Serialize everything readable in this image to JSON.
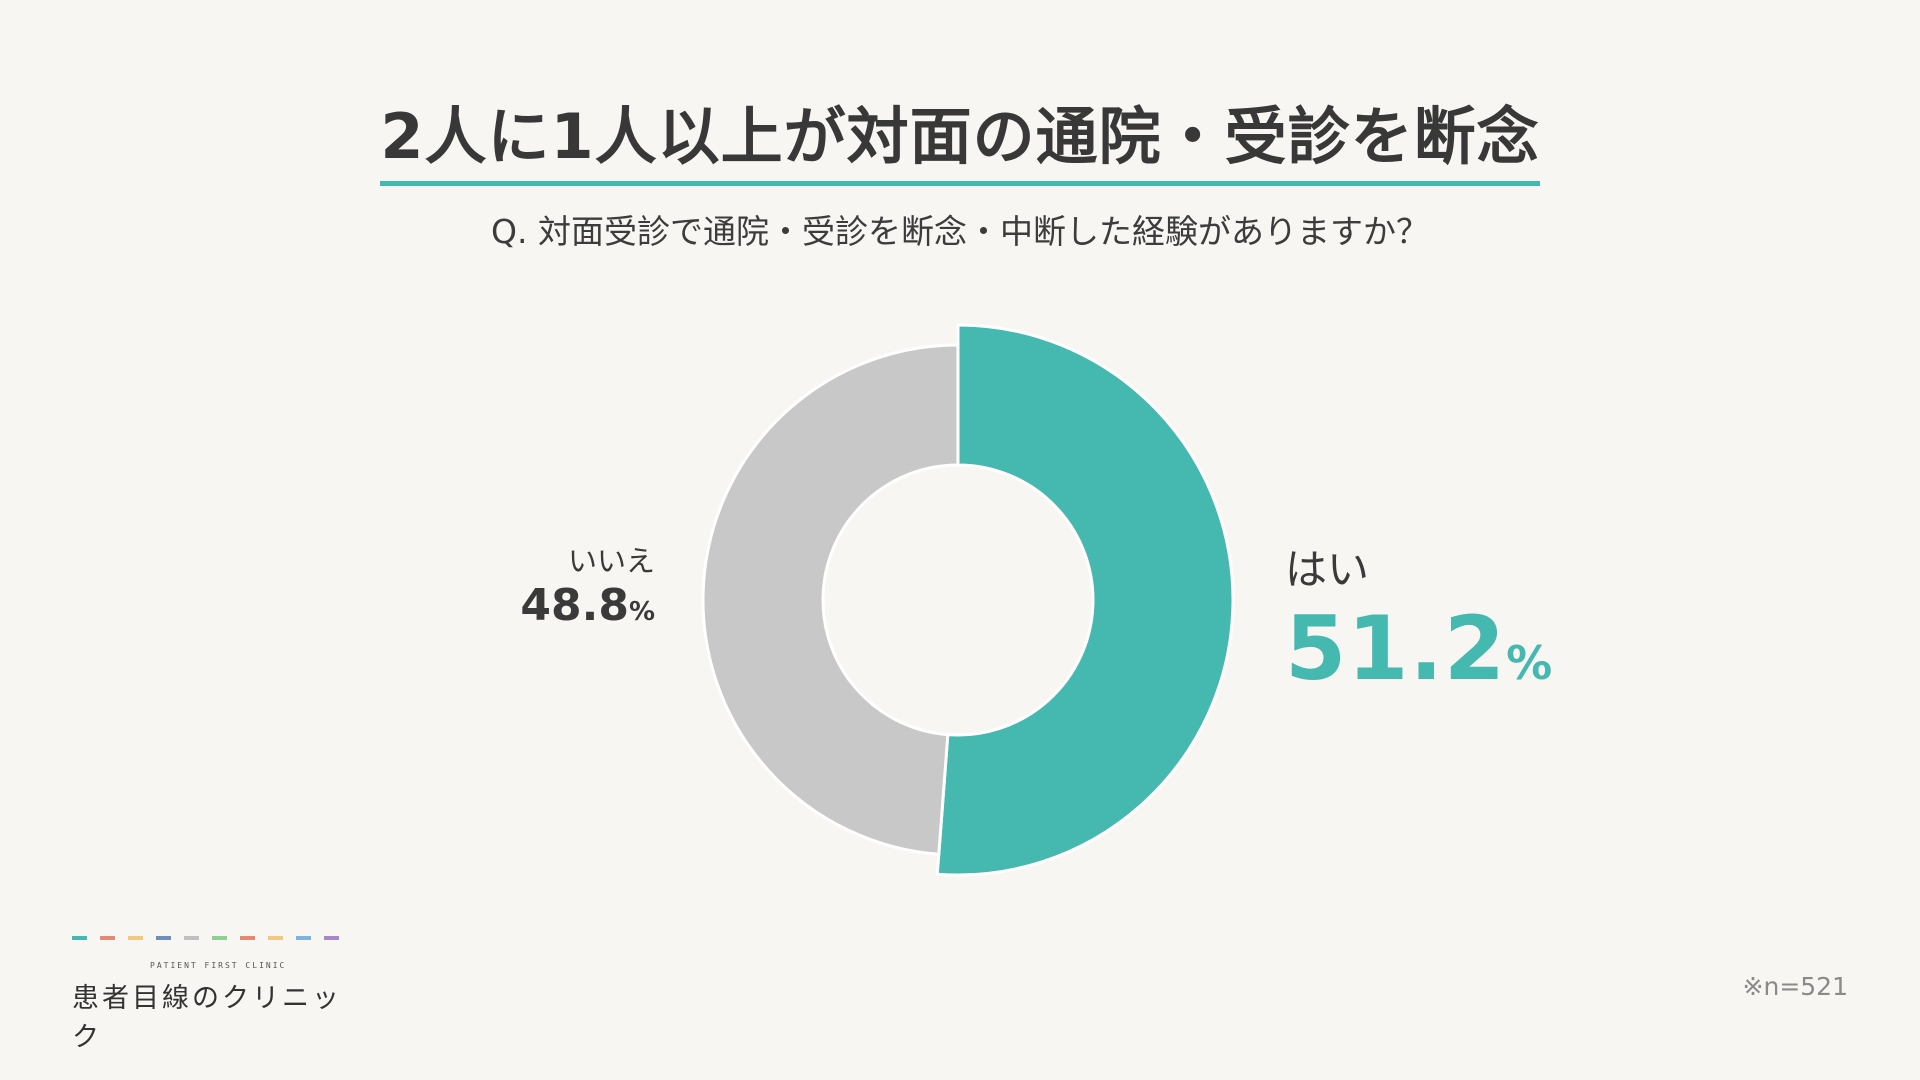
{
  "title": "2人に1人以上が対面の通院・受診を断念",
  "question": "Q. 対面受診で通院・受診を断念・中断した経験がありますか？",
  "colors": {
    "accent": "#45b8b0",
    "secondary": "#c8c8c8",
    "background": "#f8f6f2"
  },
  "chart_data": {
    "type": "pie",
    "variant": "donut",
    "categories": [
      "はい",
      "いいえ"
    ],
    "values": [
      51.2,
      48.8
    ],
    "unit": "%",
    "value_labels": [
      "51.2",
      "48.8"
    ],
    "colors": [
      "#45b8b0",
      "#c8c8c8"
    ],
    "emphasized": "はい"
  },
  "labels": {
    "yes": {
      "category": "はい",
      "value": "51.2",
      "unit": "%"
    },
    "no": {
      "category": "いいえ",
      "value": "48.8",
      "unit": "%"
    }
  },
  "brand": {
    "tagline": "PATIENT FIRST CLINIC",
    "name": "患者目線のクリニック",
    "dash_colors": [
      "#45b8b0",
      "#e48a72",
      "#f0c87e",
      "#6f8fb8",
      "#c0c0c0",
      "#8fcf92",
      "#e48a72",
      "#f0c87e",
      "#7fb3df",
      "#a887c8"
    ]
  },
  "note": "※n=521"
}
